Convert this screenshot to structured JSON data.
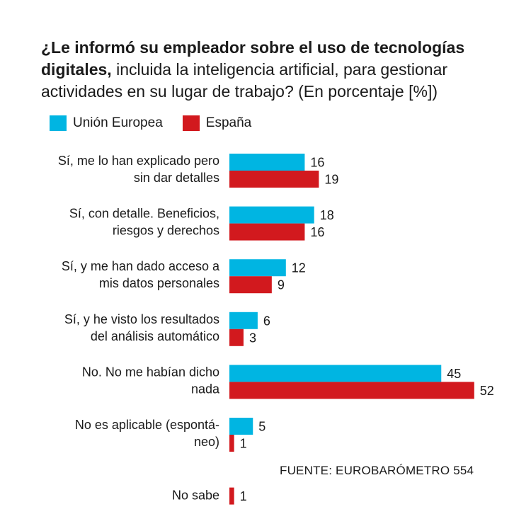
{
  "title": {
    "bold": "¿Le informó su empleador sobre el uso de tecnologías digitales,",
    "regular": "incluida la inteligencia artificial, para gestionar actividades en su lugar de trabajo? (En porcentaje [%])"
  },
  "source": "FUENTE: EUROBARÓMETRO 554",
  "colors": {
    "eu": "#00b5e2",
    "es": "#d2191e"
  },
  "chart_data": {
    "type": "bar",
    "orientation": "horizontal",
    "title": "¿Le informó su empleador sobre el uso de tecnologías digitales, incluida la inteligencia artificial, para gestionar actividades en su lugar de trabajo? (En porcentaje [%])",
    "xlabel": "",
    "ylabel": "",
    "xlim": [
      0,
      60
    ],
    "grid": false,
    "legend_position": "top-left",
    "categories": [
      [
        "Sí, me lo han explicado pero",
        "sin dar detalles"
      ],
      [
        "Sí, con detalle.  Beneficios,",
        "riesgos y derechos"
      ],
      [
        "Sí, y me han dado acceso a",
        "mis datos personales"
      ],
      [
        "Sí, y he visto los resultados",
        "del análisis automático"
      ],
      [
        "No. No me habían dicho",
        "nada"
      ],
      [
        "No es aplicable (espontá-",
        "neo)"
      ],
      [
        "No sabe"
      ]
    ],
    "series": [
      {
        "name": "Unión Europea",
        "color": "#00b5e2",
        "values": [
          16,
          18,
          12,
          6,
          45,
          5,
          null
        ]
      },
      {
        "name": "España",
        "color": "#d2191e",
        "values": [
          19,
          16,
          9,
          3,
          52,
          1,
          1
        ]
      }
    ]
  }
}
